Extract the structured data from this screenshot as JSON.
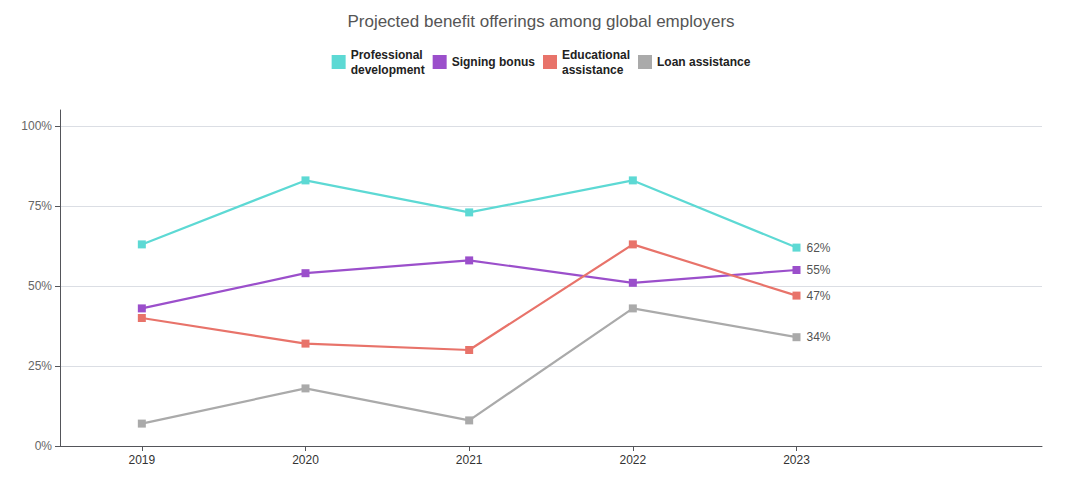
{
  "chart_data": {
    "type": "line",
    "title": "Projected benefit offerings among global employers",
    "x": [
      2019,
      2020,
      2021,
      2022,
      2023
    ],
    "xlim": [
      2018.5,
      2024.5
    ],
    "xticks": [
      2019,
      2020,
      2021,
      2022,
      2023
    ],
    "series": [
      {
        "name": "Professional\ndevelopment",
        "color": "#5DD9D4",
        "marker": "square",
        "values": [
          63,
          83,
          73,
          83,
          62
        ]
      },
      {
        "name": "Signing bonus",
        "color": "#9B4FCB",
        "marker": "square",
        "values": [
          43,
          54,
          58,
          51,
          55
        ]
      },
      {
        "name": "Educational\nassistance",
        "color": "#E8736A",
        "marker": "square",
        "values": [
          40,
          32,
          30,
          63,
          47
        ]
      },
      {
        "name": "Loan assistance",
        "color": "#AAAAAA",
        "marker": "square",
        "values": [
          7,
          18,
          8,
          43,
          34
        ]
      }
    ],
    "annotations": [
      {
        "text": "62%",
        "x": 2023,
        "y": 62
      },
      {
        "text": "55%",
        "x": 2023,
        "y": 55
      },
      {
        "text": "47%",
        "x": 2023,
        "y": 47
      },
      {
        "text": "34%",
        "x": 2023,
        "y": 34
      }
    ],
    "ylim": [
      0,
      105
    ],
    "yticks": [
      {
        "value": 0,
        "label": "0%"
      },
      {
        "value": 25,
        "label": "25%"
      },
      {
        "value": 50,
        "label": "50%"
      },
      {
        "value": 75,
        "label": "75%"
      },
      {
        "value": 100,
        "label": "100%"
      }
    ],
    "grid": true,
    "legend": "top"
  }
}
